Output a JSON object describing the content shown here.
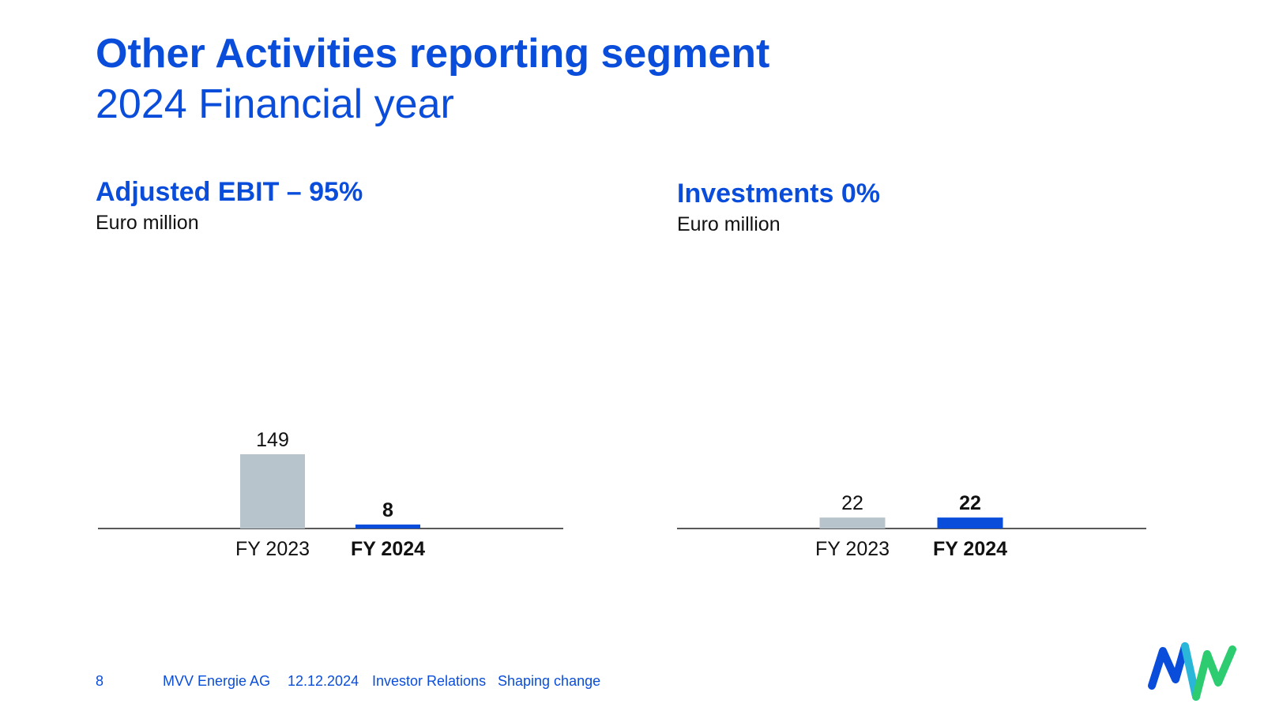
{
  "page": {
    "title": "Other Activities reporting segment",
    "subtitle": "2024 Financial year"
  },
  "chart_data": [
    {
      "type": "bar",
      "title": "Adjusted EBIT – 95%",
      "unit": "Euro million",
      "categories": [
        "FY 2023",
        "FY 2024"
      ],
      "values": [
        149,
        8
      ],
      "value_labels": [
        "149",
        "8"
      ],
      "ylim": [
        0,
        149
      ],
      "grid": false,
      "colors": [
        "#b8c4cc",
        "#0a4ddb"
      ],
      "bold_category": "FY 2024"
    },
    {
      "type": "bar",
      "title": "Investments 0%",
      "unit": "Euro million",
      "categories": [
        "FY 2023",
        "FY 2024"
      ],
      "values": [
        22,
        22
      ],
      "value_labels": [
        "22",
        "22"
      ],
      "ylim": [
        0,
        149
      ],
      "grid": false,
      "colors": [
        "#b8c4cc",
        "#0a4ddb"
      ],
      "bold_category": "FY 2024"
    }
  ],
  "footer": {
    "page_number": "8",
    "company": "MVV Energie AG",
    "date": "12.12.2024",
    "department": "Investor Relations",
    "slogan": "Shaping change"
  },
  "logo": {
    "name": "mvv-logo",
    "colors": [
      "#0a4ddb",
      "#29b6d8",
      "#2ecc71"
    ]
  }
}
